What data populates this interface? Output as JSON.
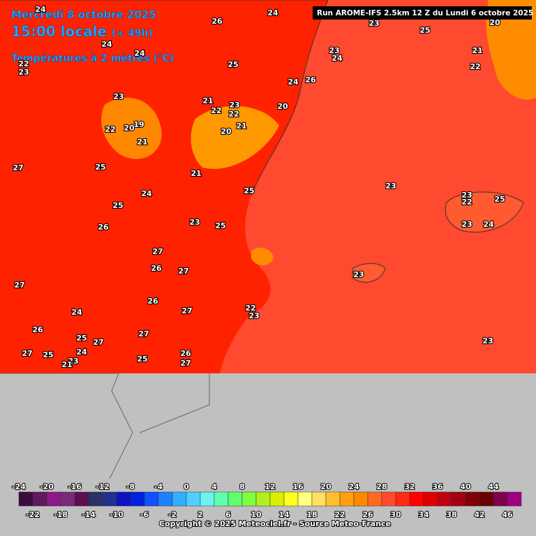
{
  "header": {
    "date": "Mercredi 8 octobre 2025",
    "time": "15:00 locale",
    "lead": "(+ 49h)",
    "variable": "Températures à 2 mètres (°C)",
    "run": "Run AROME-IFS 2.5km 12 Z du Lundi 6 octobre 2025"
  },
  "map": {
    "labels": [
      "24",
      "24",
      "26",
      "23",
      "25",
      "20",
      "24",
      "24",
      "23",
      "24",
      "21",
      "22",
      "22",
      "23",
      "25",
      "24",
      "26",
      "23",
      "21",
      "23",
      "22",
      "22",
      "20",
      "19",
      "20",
      "22",
      "21",
      "20",
      "21",
      "27",
      "25",
      "21",
      "25",
      "24",
      "23",
      "23",
      "22",
      "25",
      "25",
      "26",
      "23",
      "25",
      "23",
      "24",
      "27",
      "26",
      "27",
      "23",
      "27",
      "26",
      "27",
      "22",
      "23",
      "24",
      "26",
      "27",
      "25",
      "27",
      "24",
      "27",
      "25",
      "26",
      "25",
      "23",
      "21",
      "27",
      "23"
    ]
  },
  "legend": {
    "ticks_top": [
      "-24",
      "-20",
      "-16",
      "-12",
      "-8",
      "-4",
      "0",
      "4",
      "8",
      "12",
      "16",
      "20",
      "24",
      "28",
      "32",
      "36",
      "40",
      "44"
    ],
    "ticks_bottom": [
      "-22",
      "-18",
      "-14",
      "-10",
      "-6",
      "-2",
      "2",
      "6",
      "10",
      "14",
      "18",
      "22",
      "26",
      "30",
      "34",
      "38",
      "42",
      "46"
    ],
    "colors": [
      "#3c0c3c",
      "#5e1a5e",
      "#8a1a8a",
      "#7a2a7a",
      "#5a1050",
      "#2a3068",
      "#203090",
      "#1010c0",
      "#0020e0",
      "#1050ff",
      "#2080ff",
      "#30b0ff",
      "#50d0ff",
      "#70f0f0",
      "#60ffb0",
      "#60ff70",
      "#80ff40",
      "#b0f020",
      "#d8f000",
      "#ffff20",
      "#ffff80",
      "#ffe060",
      "#ffc030",
      "#ffa010",
      "#ff8800",
      "#ff6a20",
      "#ff4a30",
      "#ff2a10",
      "#ff0000",
      "#e00000",
      "#c00010",
      "#a00010",
      "#800008",
      "#6a0000",
      "#800050",
      "#a00080"
    ]
  },
  "footer": "Copyright © 2025 Meteociel.fr - Source Meteo-France"
}
